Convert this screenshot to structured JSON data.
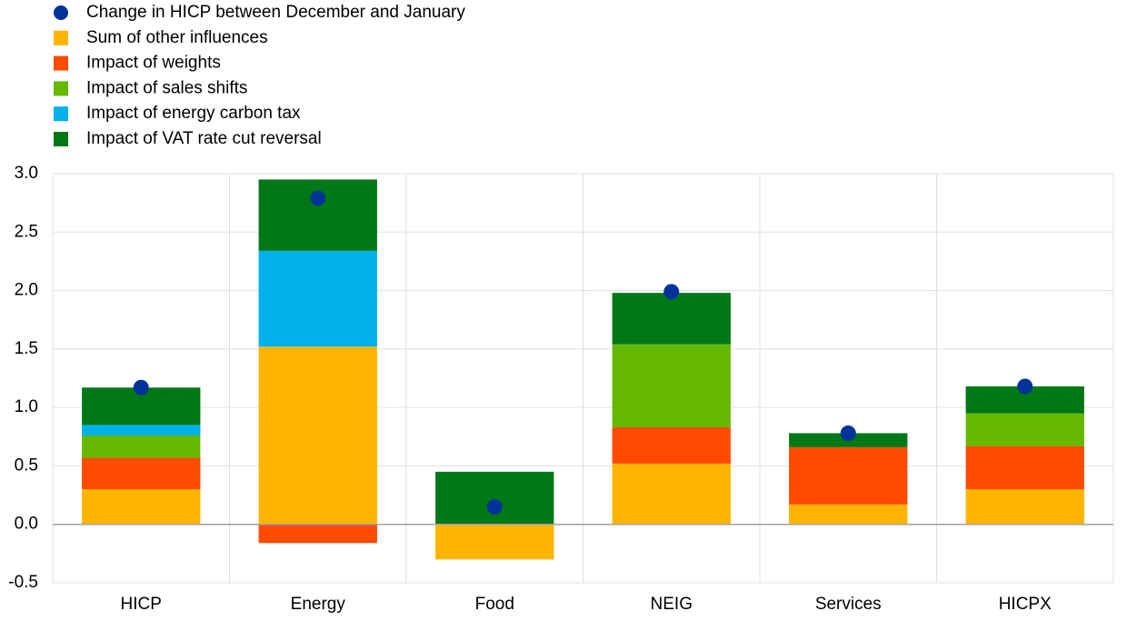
{
  "chart_data": {
    "type": "bar",
    "categories": [
      "HICP",
      "Energy",
      "Food",
      "NEIG",
      "Services",
      "HICPX"
    ],
    "points": {
      "name": "Change in HICP between December and January",
      "color": "#003299",
      "values": [
        1.17,
        2.79,
        0.15,
        1.99,
        0.78,
        1.18
      ]
    },
    "series": [
      {
        "name": "Sum of other influences",
        "color": "#ffb400",
        "values": [
          0.3,
          1.52,
          -0.3,
          0.52,
          0.17,
          0.3
        ]
      },
      {
        "name": "Impact of weights",
        "color": "#ff4b00",
        "values": [
          0.27,
          -0.16,
          0,
          0.31,
          0.49,
          0.37
        ]
      },
      {
        "name": "Impact of sales shifts",
        "color": "#65b800",
        "values": [
          0.19,
          0,
          0,
          0.71,
          0,
          0.28
        ]
      },
      {
        "name": "Impact of energy carbon tax",
        "color": "#00b1ea",
        "values": [
          0.09,
          0.82,
          0,
          0,
          0,
          0
        ]
      },
      {
        "name": "Impact of VAT rate cut reversal",
        "color": "#007816",
        "values": [
          0.32,
          0.61,
          0.45,
          0.44,
          0.12,
          0.23
        ]
      }
    ],
    "ylim": [
      -0.5,
      3.0
    ],
    "yticks": [
      {
        "value": -0.5,
        "label": "-0.5"
      },
      {
        "value": 0,
        "label": "0.0"
      },
      {
        "value": 0.5,
        "label": "0.5"
      },
      {
        "value": 1,
        "label": "1.0"
      },
      {
        "value": 1.5,
        "label": "1.5"
      },
      {
        "value": 2,
        "label": "2.0"
      },
      {
        "value": 2.5,
        "label": "2.5"
      },
      {
        "value": 3,
        "label": "3.0"
      }
    ],
    "grid": true
  }
}
